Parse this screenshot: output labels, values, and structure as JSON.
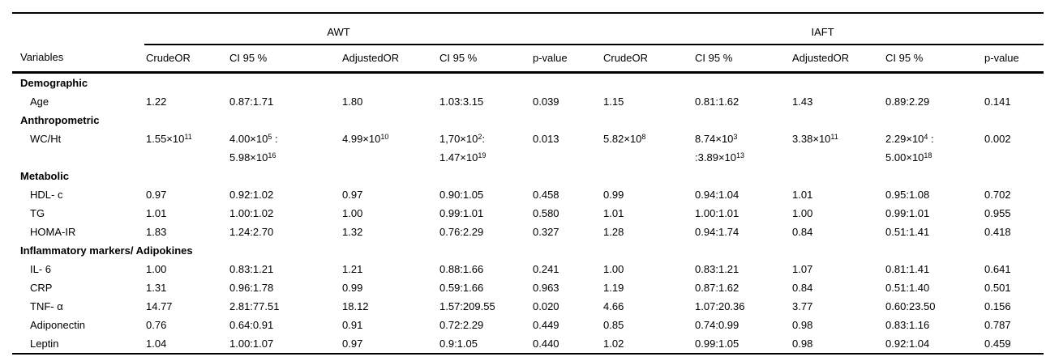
{
  "page": {
    "background": "#ffffff",
    "text_color": "#000000",
    "rule_color": "#000000"
  },
  "table": {
    "col_groups": [
      {
        "label": "",
        "span": 1
      },
      {
        "label": "AWT",
        "span": 5
      },
      {
        "label": "IAFT",
        "span": 5
      }
    ],
    "columns": [
      "Variables",
      "CrudeOR",
      "CI 95 %",
      "AdjustedOR",
      "CI 95 %",
      "p-value",
      "CrudeOR",
      "CI 95 %",
      "AdjustedOR",
      "CI 95 %",
      "p-value"
    ],
    "sections": [
      {
        "header": "Demographic",
        "rows": [
          {
            "label": "Age",
            "values": [
              "1.22",
              "0.87:1.71",
              "1.80",
              "1.03:3.15",
              "0.039",
              "1.15",
              "0.81:1.62",
              "1.43",
              "0.89:2.29",
              "0.141"
            ]
          }
        ]
      },
      {
        "header": "Anthropometric",
        "rows": [
          {
            "label": "WC/Ht",
            "values": [
              "1.55×10^11",
              "4.00×10^5 :\n5.98×10^16",
              "4.99×10^10",
              "1,70×10^2:\n1.47×10^19",
              "0.013",
              "5.82×10^8",
              "8.74×10^3\n:3.89×10^13",
              "3.38×10^11",
              "2.29×10^4 :\n5.00×10^18",
              "0.002"
            ]
          }
        ]
      },
      {
        "header": "Metabolic",
        "rows": [
          {
            "label": "HDL- c",
            "values": [
              "0.97",
              "0.92:1.02",
              "0.97",
              "0.90:1.05",
              "0.458",
              "0.99",
              "0.94:1.04",
              "1.01",
              "0.95:1.08",
              "0.702"
            ]
          },
          {
            "label": "TG",
            "values": [
              "1.01",
              "1.00:1.02",
              "1.00",
              "0.99:1.01",
              "0.580",
              "1.01",
              "1.00:1.01",
              "1.00",
              "0.99:1.01",
              "0.955"
            ]
          },
          {
            "label": "HOMA-IR",
            "values": [
              "1.83",
              "1.24:2.70",
              "1.32",
              "0.76:2.29",
              "0.327",
              "1.28",
              "0.94:1.74",
              "0.84",
              "0.51:1.41",
              "0.418"
            ]
          }
        ]
      },
      {
        "header": "Inflammatory markers/ Adipokines",
        "rows": [
          {
            "label": "IL- 6",
            "values": [
              "1.00",
              "0.83:1.21",
              "1.21",
              "0.88:1.66",
              "0.241",
              "1.00",
              "0.83:1.21",
              "1.07",
              "0.81:1.41",
              "0.641"
            ]
          },
          {
            "label": "CRP",
            "values": [
              "1.31",
              "0.96:1.78",
              "0.99",
              "0.59:1.66",
              "0.963",
              "1.19",
              "0.87:1.62",
              "0.84",
              "0.51:1.40",
              "0.501"
            ]
          },
          {
            "label": "TNF- α",
            "values": [
              "14.77",
              "2.81:77.51",
              "18.12",
              "1.57:209.55",
              "0.020",
              "4.66",
              "1.07:20.36",
              "3.77",
              "0.60:23.50",
              "0.156"
            ]
          },
          {
            "label": "Adiponectin",
            "values": [
              "0.76",
              "0.64:0.91",
              "0.91",
              "0.72:2.29",
              "0.449",
              "0.85",
              "0.74:0.99",
              "0.98",
              "0.83:1.16",
              "0.787"
            ]
          },
          {
            "label": "Leptin",
            "values": [
              "1.04",
              "1.00:1.07",
              "0.97",
              "0.9:1.05",
              "0.440",
              "1.02",
              "0.99:1.05",
              "0.98",
              "0.92:1.04",
              "0.459"
            ]
          }
        ]
      }
    ]
  }
}
